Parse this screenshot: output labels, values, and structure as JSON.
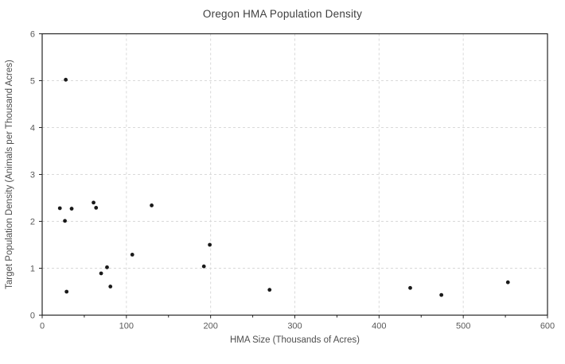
{
  "chart_data": {
    "type": "scatter",
    "title": "Oregon HMA Population Density",
    "xlabel": "HMA Size (Thousands of Acres)",
    "ylabel": "Target Population Density (Animals per Thousand Acres)",
    "xlim": [
      0,
      600
    ],
    "ylim": [
      0,
      6
    ],
    "x_ticks": [
      0,
      100,
      200,
      300,
      400,
      500,
      600
    ],
    "x_minor_tick_step": 50,
    "y_ticks": [
      0,
      1,
      2,
      3,
      4,
      5,
      6
    ],
    "grid": true,
    "legend": "none",
    "colors": {
      "point": "#1a1a1a",
      "gridline": "#d9d9d9",
      "axis_line": "#262626",
      "tick_label": "#595959",
      "axis_title": "#4d4d4d",
      "title": "#3f3f3f",
      "background": "#ffffff"
    },
    "points": [
      {
        "x": 21,
        "y": 2.28
      },
      {
        "x": 27,
        "y": 2.01
      },
      {
        "x": 28,
        "y": 5.02
      },
      {
        "x": 29,
        "y": 0.5
      },
      {
        "x": 35,
        "y": 2.27
      },
      {
        "x": 61,
        "y": 2.4
      },
      {
        "x": 64,
        "y": 2.29
      },
      {
        "x": 70,
        "y": 0.89
      },
      {
        "x": 77,
        "y": 1.02
      },
      {
        "x": 81,
        "y": 0.61
      },
      {
        "x": 107,
        "y": 1.29
      },
      {
        "x": 130,
        "y": 2.34
      },
      {
        "x": 192,
        "y": 1.04
      },
      {
        "x": 199,
        "y": 1.5
      },
      {
        "x": 270,
        "y": 0.54
      },
      {
        "x": 437,
        "y": 0.58
      },
      {
        "x": 474,
        "y": 0.43
      },
      {
        "x": 553,
        "y": 0.7
      }
    ]
  }
}
